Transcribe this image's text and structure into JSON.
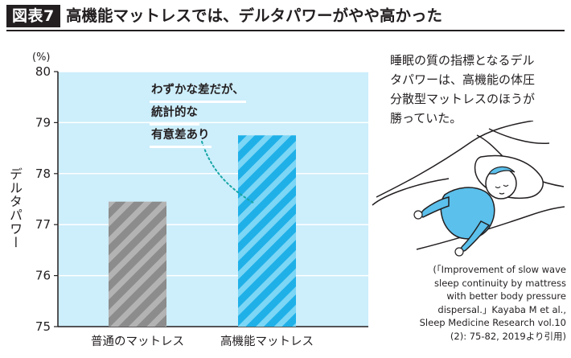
{
  "figure": {
    "label": "図表7",
    "headline": "高機能マットレスでは、デルタパワーがやや高かった"
  },
  "chart_data": {
    "type": "bar",
    "categories": [
      "普通のマットレス",
      "高機能マットレス"
    ],
    "values": [
      77.45,
      78.75
    ],
    "ylim": [
      75,
      80
    ],
    "yticks": [
      "75",
      "76",
      "77",
      "78",
      "79",
      "80"
    ],
    "ylabel": "デルタパワー",
    "unit": "(%)",
    "grid": true,
    "annotation": [
      "わずかな差だが、",
      "統計的な",
      "有意差あり"
    ],
    "colors": {
      "plot_background": "#cdeefb",
      "bar_regular": "#8c8c8c",
      "bar_regular_stripe": "#b3b3b3",
      "bar_premium": "#1fb0e8",
      "bar_premium_stripe": "#7cd6f5",
      "annotation_line": "#17a6a6"
    }
  },
  "side_note": {
    "lines": [
      "睡眠の質の指標となるデル",
      "タパワーは、高機能の体圧",
      "分散型マットレスのほうが",
      "勝っていた。"
    ]
  },
  "citation": {
    "lines": [
      "(「Improvement of slow wave",
      "sleep continuity by mattress",
      "with better body pressure",
      "dispersal.」Kayaba M et al.,",
      "Sleep Medicine Research vol.10",
      "(2): 75-82, 2019より引用)"
    ]
  },
  "illustration": {
    "icon": "sleeping-person-icon",
    "colors": {
      "pajamas": "#5bc0eb",
      "outline": "#231f20"
    }
  }
}
